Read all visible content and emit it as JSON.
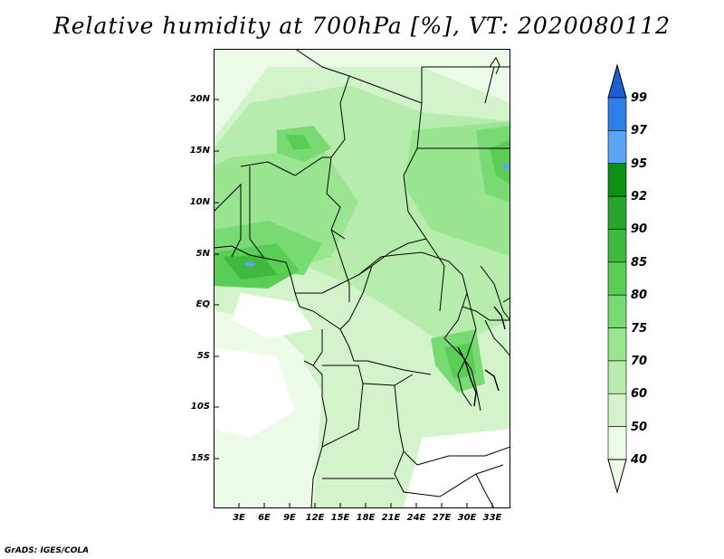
{
  "title": "Relative humidity at 700hPa [%], VT: 2020080112",
  "lat_labels": [
    "20N",
    "15N",
    "10N",
    "5N",
    "EQ",
    "5S",
    "10S",
    "15S"
  ],
  "lon_labels": [
    "3E",
    "6E",
    "9E",
    "12E",
    "15E",
    "18E",
    "21E",
    "24E",
    "27E",
    "30E",
    "33E"
  ],
  "colorbar": {
    "labels": [
      "99",
      "97",
      "95",
      "92",
      "90",
      "85",
      "80",
      "75",
      "70",
      "60",
      "50",
      "40"
    ],
    "colors": [
      "#1c5fd1",
      "#2f7fe8",
      "#5aa6f5",
      "#0e8f16",
      "#26a62c",
      "#3fba3f",
      "#5acd55",
      "#78da72",
      "#99e590",
      "#b6ecac",
      "#d3f4cb",
      "#ecfbe8"
    ]
  },
  "credit": "GrADS: IGES/COLA"
}
